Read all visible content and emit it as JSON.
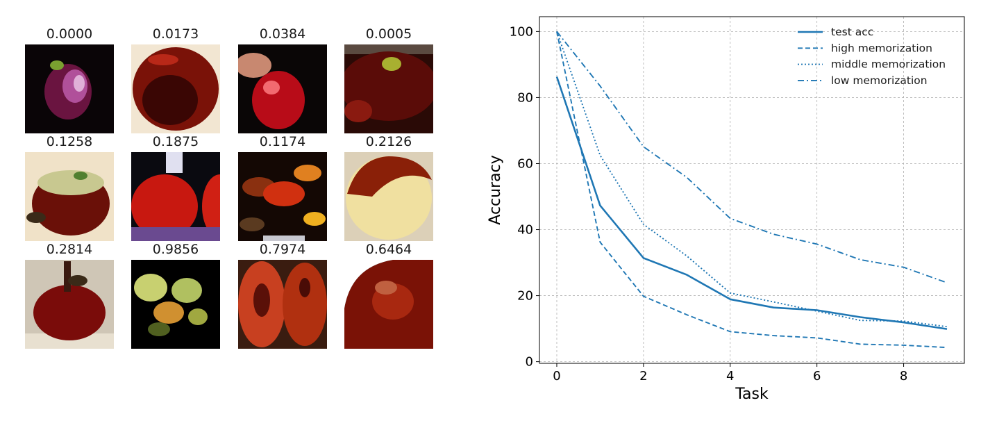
{
  "memorization_grid": {
    "rows": [
      [
        {
          "score": "0.0000",
          "image": "small purple-red apple on black background"
        },
        {
          "score": "0.0173",
          "image": "large dark red apple on white background"
        },
        {
          "score": "0.0384",
          "image": "hand holding a red apple"
        },
        {
          "score": "0.0005",
          "image": "dark red apple top with green stem"
        }
      ],
      [
        {
          "score": "0.1258",
          "image": "red and green apple on beige background"
        },
        {
          "score": "0.1875",
          "image": "two bright red apples with sticker"
        },
        {
          "score": "0.1174",
          "image": "dark cluttered scene with red fruit"
        },
        {
          "score": "0.2126",
          "image": "pale yellow apple with red top"
        }
      ],
      [
        {
          "score": "0.2814",
          "image": "dark red apple with long stem"
        },
        {
          "score": "0.9856",
          "image": "cluster of yellow-green apples on black"
        },
        {
          "score": "0.7974",
          "image": "two red-brown apples side by side"
        },
        {
          "score": "0.6464",
          "image": "pixelated dark red apple close-up"
        }
      ]
    ]
  },
  "chart_data": {
    "type": "line",
    "title": "",
    "xlabel": "Task",
    "ylabel": "Accuracy",
    "xlim": [
      -0.4,
      9.4
    ],
    "ylim": [
      -0.5,
      104.5
    ],
    "xticks": [
      0,
      2,
      4,
      6,
      8
    ],
    "yticks": [
      0,
      20,
      40,
      60,
      80,
      100
    ],
    "grid": true,
    "legend_position": "top-right",
    "x": [
      0,
      1,
      2,
      3,
      4,
      5,
      6,
      7,
      8,
      9
    ],
    "series": [
      {
        "name": "test acc",
        "style": "solid",
        "color": "#1f77b4",
        "values": [
          86.3,
          47.3,
          31.4,
          26.3,
          18.9,
          16.4,
          15.6,
          13.5,
          11.9,
          9.9
        ]
      },
      {
        "name": "high memorization",
        "style": "dashed",
        "color": "#1f77b4",
        "values": [
          100.0,
          36.2,
          19.8,
          14.2,
          9.1,
          7.9,
          7.2,
          5.3,
          5.0,
          4.3
        ]
      },
      {
        "name": "middle memorization",
        "style": "dotted",
        "color": "#1f77b4",
        "values": [
          100.0,
          62.5,
          41.6,
          32.0,
          20.8,
          18.1,
          15.3,
          12.5,
          12.3,
          10.6
        ]
      },
      {
        "name": "low memorization",
        "style": "dashdot",
        "color": "#1f77b4",
        "values": [
          100.0,
          83.5,
          65.1,
          55.8,
          43.4,
          38.6,
          35.6,
          30.9,
          28.6,
          23.9
        ]
      }
    ]
  }
}
